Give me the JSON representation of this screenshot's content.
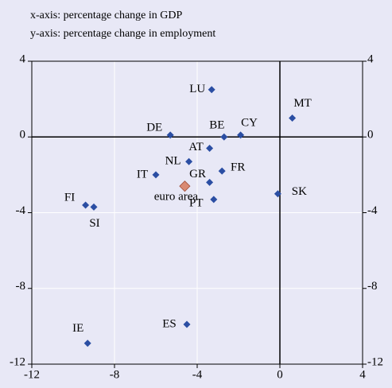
{
  "chart_data": {
    "type": "scatter",
    "subtitle_lines": [
      "x-axis: percentage change in GDP",
      "y-axis: percentage change in employment"
    ],
    "point_labels": [
      "LU",
      "MT",
      "DE",
      "BE",
      "CY",
      "AT",
      "NL",
      "FR",
      "IT",
      "GR",
      "PT",
      "SK",
      "FI",
      "SI",
      "ES",
      "IE"
    ],
    "x": [
      -3.3,
      0.6,
      -5.3,
      -2.7,
      -1.9,
      -3.4,
      -4.4,
      -2.8,
      -6.0,
      -3.4,
      -3.2,
      -0.1,
      -9.4,
      -9.0,
      -4.5,
      -9.3
    ],
    "y": [
      2.5,
      1.0,
      0.1,
      0.0,
      0.1,
      -0.6,
      -1.3,
      -1.8,
      -2.0,
      -2.4,
      -3.3,
      -3.0,
      -3.6,
      -3.7,
      -9.9,
      -10.9
    ],
    "color": "#2b4ea3",
    "highlight": {
      "label": "euro area",
      "x": -4.6,
      "y": -2.6,
      "color": "#d98a73"
    },
    "xlim": [
      -12,
      4
    ],
    "ylim": [
      -12,
      4
    ],
    "xticks": [
      -12,
      -8,
      -4,
      0,
      4
    ],
    "yticks": [
      4,
      0,
      -4,
      -8,
      -12
    ],
    "grid": true
  }
}
